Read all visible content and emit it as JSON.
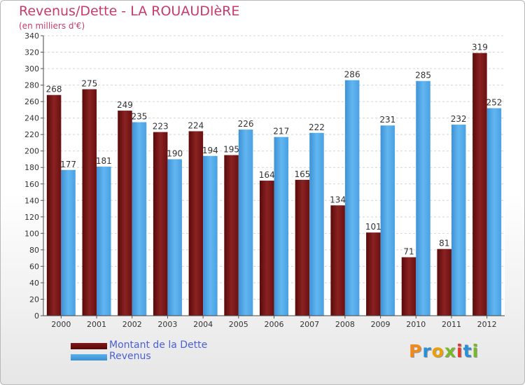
{
  "title": "Revenus/Dette - LA ROUAUDIèRE",
  "subtitle": "(en milliers d'€)",
  "chart_data": {
    "type": "bar",
    "title": "Revenus/Dette - LA ROUAUDIèRE",
    "ylabel": "(en milliers d'€)",
    "xlabel": "",
    "ylim": [
      0,
      340
    ],
    "ytick_step": 20,
    "grid": true,
    "categories": [
      "2000",
      "2001",
      "2002",
      "2003",
      "2004",
      "2005",
      "2006",
      "2007",
      "2008",
      "2009",
      "2010",
      "2011",
      "2012"
    ],
    "series": [
      {
        "name": "Montant de la Dette",
        "color": "#7a1414",
        "values": [
          268,
          275,
          249,
          223,
          224,
          195,
          164,
          165,
          134,
          101,
          71,
          81,
          319
        ]
      },
      {
        "name": "Revenus",
        "color": "#4ea6e8",
        "values": [
          177,
          181,
          235,
          190,
          194,
          226,
          217,
          222,
          286,
          231,
          285,
          232,
          252
        ]
      }
    ]
  },
  "legend": {
    "dette_label": "Montant de la Dette",
    "revenus_label": "Revenus"
  },
  "logo": {
    "text": "Proxiti",
    "colors": [
      "#f08a1c",
      "#2a8fd6",
      "#e8a10c",
      "#7ab82a",
      "#e03a2a",
      "#2a8fd6",
      "#7ab82a"
    ]
  }
}
